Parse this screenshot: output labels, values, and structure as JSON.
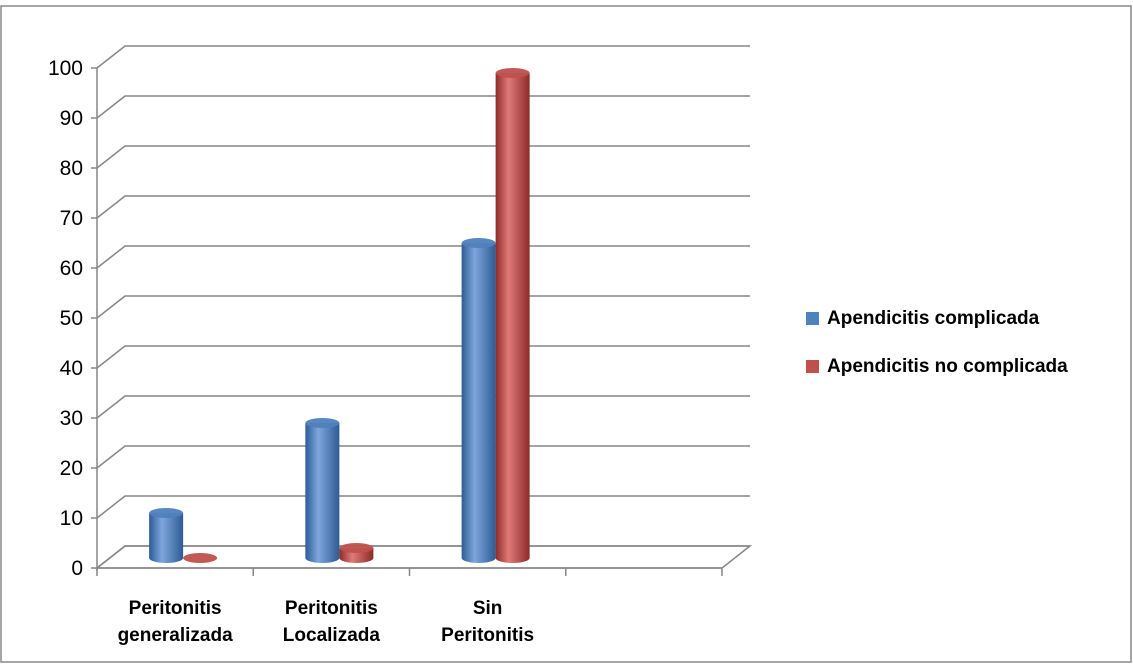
{
  "chart_data": {
    "type": "bar",
    "style": "3d-cylinder",
    "categories": [
      [
        "Peritonitis",
        "generalizada"
      ],
      [
        "Peritonitis",
        "Localizada"
      ],
      [
        "Sin",
        "Peritonitis"
      ],
      [
        "",
        ""
      ]
    ],
    "series": [
      {
        "name": "Apendicitis complicada",
        "color": "#4F81BD",
        "values": [
          9,
          27,
          63,
          null
        ]
      },
      {
        "name": "Apendicitis no complicada",
        "color": "#C0504D",
        "values": [
          0,
          2,
          97,
          null
        ]
      }
    ],
    "yticks": [
      "0",
      "10",
      "20",
      "30",
      "40",
      "50",
      "60",
      "70",
      "80",
      "90",
      "100"
    ],
    "ylim": [
      0,
      100
    ],
    "title": "",
    "xlabel": "",
    "ylabel": "",
    "grid": true,
    "legend_position": "right"
  }
}
